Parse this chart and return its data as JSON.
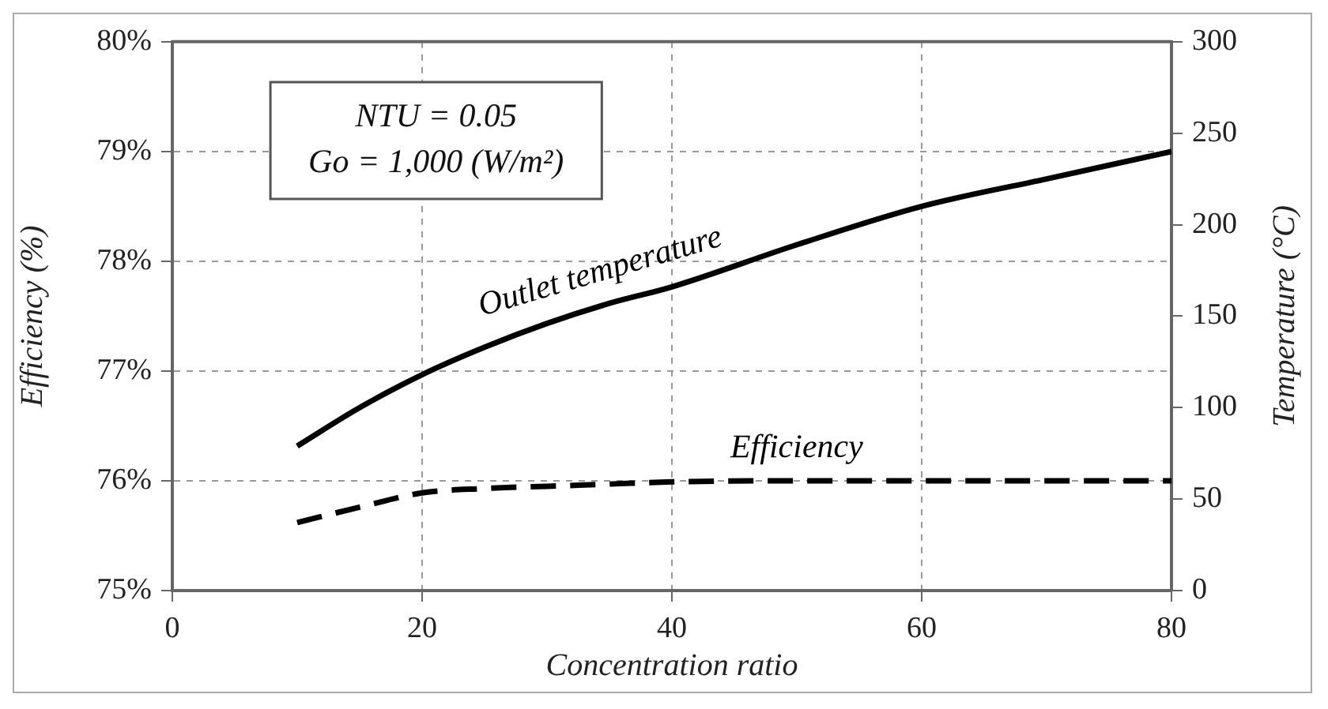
{
  "chart_data": {
    "type": "line",
    "xlabel": "Concentration ratio",
    "ylabel": "Efficiency (%)",
    "y2label": "Temperature (°C)",
    "annotations": [
      "NTU = 0.05",
      "Go = 1,000 (W/m²)"
    ],
    "x": [
      10,
      15,
      20,
      25,
      30,
      35,
      40,
      50,
      60,
      70,
      80
    ],
    "xlim": [
      0,
      80
    ],
    "xticks": [
      0,
      20,
      40,
      60,
      80
    ],
    "ylim": [
      75,
      80
    ],
    "yticks": [
      {
        "value": 75,
        "label": "75%"
      },
      {
        "value": 76,
        "label": "76%"
      },
      {
        "value": 77,
        "label": "77%"
      },
      {
        "value": 78,
        "label": "78%"
      },
      {
        "value": 79,
        "label": "79%"
      },
      {
        "value": 80,
        "label": "80%"
      }
    ],
    "y2lim": [
      0,
      300
    ],
    "y2ticks": [
      0,
      50,
      100,
      150,
      200,
      250,
      300
    ],
    "grid": true,
    "marker": "none",
    "series": [
      {
        "name": "Outlet temperature",
        "color": "#000000",
        "axis": "y2",
        "line_style": "solid",
        "values": [
          79,
          100,
          118,
          133,
          146,
          157,
          166,
          189,
          210,
          225,
          240
        ]
      },
      {
        "name": "Efficiency",
        "color": "#000000",
        "line_style": "dashed",
        "values": [
          75.62,
          75.76,
          75.89,
          75.93,
          75.95,
          75.97,
          75.99,
          76.0,
          76.0,
          76.0,
          76.0
        ]
      }
    ]
  }
}
